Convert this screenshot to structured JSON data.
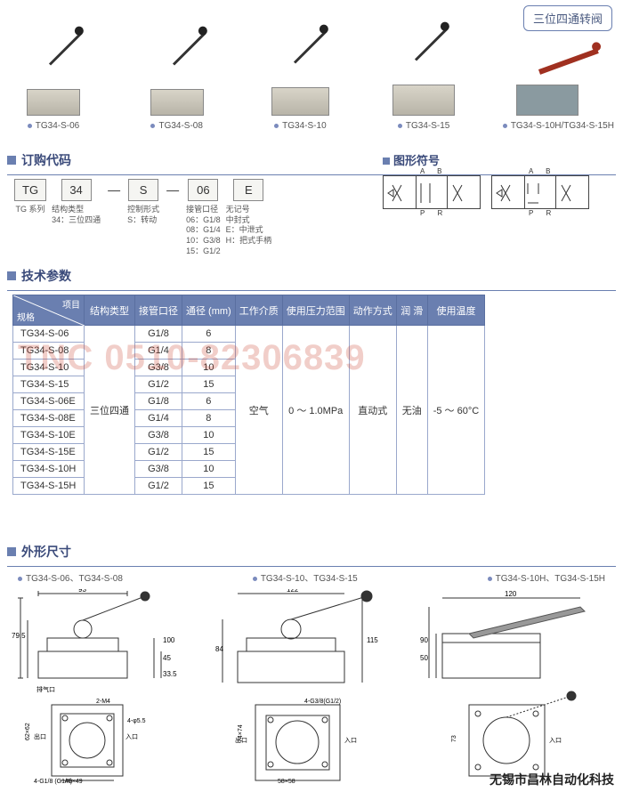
{
  "topLabel": "三位四通转阀",
  "products": [
    {
      "label": "TG34-S-06",
      "variant": "std"
    },
    {
      "label": "TG34-S-08",
      "variant": "std"
    },
    {
      "label": "TG34-S-10",
      "variant": "std"
    },
    {
      "label": "TG34-S-15",
      "variant": "std"
    },
    {
      "label": "TG34-S-10H/TG34-S-15H",
      "variant": "h"
    }
  ],
  "sections": {
    "ordering": "订购代码",
    "symbols": "图形符号",
    "tech": "技术参数",
    "dims": "外形尺寸"
  },
  "ordering": {
    "tg": "TG",
    "tg_sub": "TG 系列",
    "n34": "34",
    "n34_sub": "结构类型\n34：三位四通",
    "s": "S",
    "s_sub": "控制形式\nS：转动",
    "n06": "06",
    "n06_sub": "接管口径\n06：G1/8\n08：G1/4\n10：G3/8\n15：G1/2",
    "e": "E",
    "e_sub": "无记号\n中封式\nE：中泄式\nH：把式手柄",
    "dash": "—"
  },
  "symbolLabels": {
    "top": "A B",
    "bottom": "P R"
  },
  "techHeaders": {
    "diag_item": "项目",
    "diag_spec": "规格",
    "struct": "结构类型",
    "port": "接管口径",
    "diameter": "通径 (mm)",
    "medium": "工作介质",
    "pressure": "使用压力范围",
    "action": "动作方式",
    "lube": "润 滑",
    "temp": "使用温度"
  },
  "techCommon": {
    "struct": "三位四通",
    "medium": "空气",
    "pressure": "0 ～ 1.0MPa",
    "action": "直动式",
    "lube": "无油",
    "temp": "-5 ～ 60°C"
  },
  "techRows": [
    {
      "model": "TG34-S-06",
      "port": "G1/8",
      "dia": "6"
    },
    {
      "model": "TG34-S-08",
      "port": "G1/4",
      "dia": "8"
    },
    {
      "model": "TG34-S-10",
      "port": "G3/8",
      "dia": "10"
    },
    {
      "model": "TG34-S-15",
      "port": "G1/2",
      "dia": "15"
    },
    {
      "model": "TG34-S-06E",
      "port": "G1/8",
      "dia": "6"
    },
    {
      "model": "TG34-S-08E",
      "port": "G1/4",
      "dia": "8"
    },
    {
      "model": "TG34-S-10E",
      "port": "G3/8",
      "dia": "10"
    },
    {
      "model": "TG34-S-15E",
      "port": "G1/2",
      "dia": "15"
    },
    {
      "model": "TG34-S-10H",
      "port": "G3/8",
      "dia": "10"
    },
    {
      "model": "TG34-S-15H",
      "port": "G1/2",
      "dia": "15"
    }
  ],
  "dimLabels": [
    "TG34-S-06、TG34-S-08",
    "TG34-S-10、TG34-S-15",
    "TG34-S-10H、TG34-S-15H"
  ],
  "dimValues": {
    "d1": {
      "w": "93",
      "h": "100",
      "h1": "79.5",
      "h2": "45",
      "h3": "33.5",
      "base_w": "49×49",
      "base_h": "62×62",
      "port": "4-G1/8 (G1/4)",
      "holes": "2-M4",
      "hole_d": "4-φ5.5",
      "vent": "排气口",
      "in": "入口",
      "out": "出口"
    },
    "d2": {
      "w": "122",
      "h": "115",
      "h1": "84",
      "base_w": "58×58",
      "base_h": "74×74",
      "port": "4-G3/8(G1/2)",
      "in": "入口",
      "out": "出口"
    },
    "d3": {
      "w": "120",
      "h1": "90",
      "h2": "50",
      "base": "73",
      "in": "入口"
    }
  },
  "watermark": "TNC 0510-82306839",
  "footer": "无锡市昌林自动化科技",
  "colors": {
    "brand": "#6a7fb0",
    "header": "#3a4a7a",
    "watermark": "rgba(200,60,40,0.25)"
  }
}
